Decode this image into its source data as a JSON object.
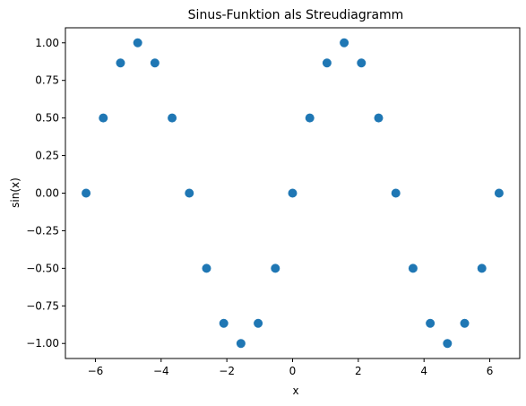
{
  "chart_data": {
    "type": "scatter",
    "title": "Sinus-Funktion als Streudiagramm",
    "xlabel": "x",
    "ylabel": "sin(x)",
    "xlim": [
      -6.912,
      6.912
    ],
    "ylim": [
      -1.1,
      1.1
    ],
    "grid": false,
    "legend": "none",
    "marker_color": "#1f77b4",
    "xticks": [
      -6,
      -4,
      -2,
      0,
      2,
      4,
      6
    ],
    "xtick_labels": [
      "−6",
      "−4",
      "−2",
      "0",
      "2",
      "4",
      "6"
    ],
    "yticks": [
      -1.0,
      -0.75,
      -0.5,
      -0.25,
      0.0,
      0.25,
      0.5,
      0.75,
      1.0
    ],
    "ytick_labels": [
      "−1.00",
      "−0.75",
      "−0.50",
      "−0.25",
      "0.00",
      "0.25",
      "0.50",
      "0.75",
      "1.00"
    ],
    "x": [
      -6.283,
      -5.76,
      -5.236,
      -4.712,
      -4.189,
      -3.665,
      -3.142,
      -2.618,
      -2.094,
      -1.571,
      -1.047,
      -0.524,
      0.0,
      0.524,
      1.047,
      1.571,
      2.094,
      2.618,
      3.142,
      3.665,
      4.189,
      4.712,
      5.236,
      5.76,
      6.283
    ],
    "y": [
      0.0,
      0.5,
      0.866,
      1.0,
      0.866,
      0.5,
      0.0,
      -0.5,
      -0.866,
      -1.0,
      -0.866,
      -0.5,
      0.0,
      0.5,
      0.866,
      1.0,
      0.866,
      0.5,
      0.0,
      -0.5,
      -0.866,
      -1.0,
      -0.866,
      -0.5,
      0.0
    ]
  }
}
